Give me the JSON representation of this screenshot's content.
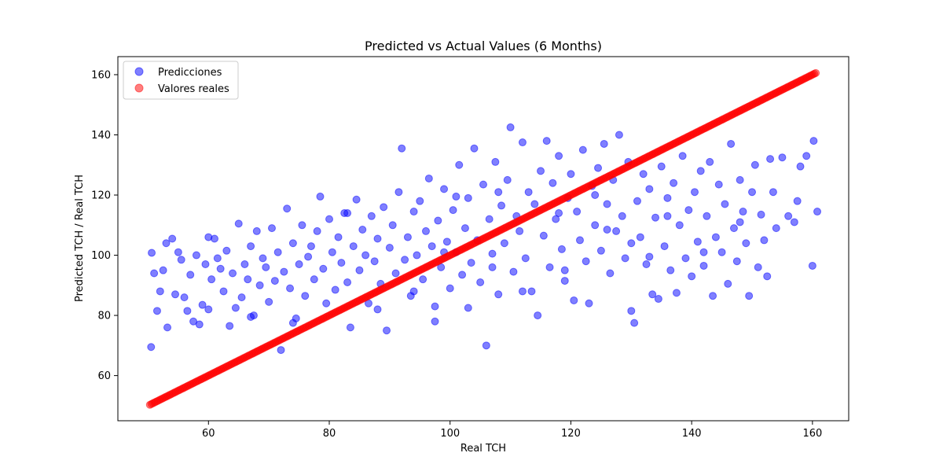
{
  "chart_data": {
    "type": "scatter",
    "title": "Predicted vs Actual Values (6 Months)",
    "xlabel": "Real TCH",
    "ylabel": "Predicted TCH / Real TCH",
    "xlim": [
      45,
      166
    ],
    "ylim": [
      45,
      166
    ],
    "xticks": [
      60,
      80,
      100,
      120,
      140,
      160
    ],
    "yticks": [
      60,
      80,
      100,
      120,
      140,
      160
    ],
    "grid": false,
    "legend_placement": "top-left",
    "series": [
      {
        "name": "Predicciones",
        "color": "#0000ff",
        "alpha": 0.5,
        "points": [
          [
            50.5,
            69.5
          ],
          [
            50.6,
            100.8
          ],
          [
            51,
            94
          ],
          [
            51.5,
            81.5
          ],
          [
            52,
            88
          ],
          [
            52.5,
            95
          ],
          [
            53,
            104
          ],
          [
            53.2,
            76
          ],
          [
            54,
            105.5
          ],
          [
            54.5,
            87
          ],
          [
            55,
            101
          ],
          [
            55.5,
            98.5
          ],
          [
            56,
            86
          ],
          [
            56.5,
            81.5
          ],
          [
            57,
            93.5
          ],
          [
            57.5,
            78
          ],
          [
            58,
            100
          ],
          [
            58.5,
            77
          ],
          [
            59,
            83.5
          ],
          [
            59.5,
            97
          ],
          [
            60,
            82
          ],
          [
            60.5,
            92
          ],
          [
            61,
            105.5
          ],
          [
            61.5,
            99
          ],
          [
            62,
            95.5
          ],
          [
            62.5,
            88
          ],
          [
            63,
            101.5
          ],
          [
            63.5,
            76.5
          ],
          [
            64,
            94
          ],
          [
            64.5,
            82.5
          ],
          [
            65,
            110.5
          ],
          [
            65.5,
            86
          ],
          [
            66,
            97
          ],
          [
            66.5,
            92
          ],
          [
            67,
            103
          ],
          [
            67.5,
            80
          ],
          [
            68,
            108
          ],
          [
            68.5,
            90
          ],
          [
            69,
            99
          ],
          [
            69.5,
            96
          ],
          [
            70,
            84.5
          ],
          [
            70.5,
            109
          ],
          [
            71,
            91.5
          ],
          [
            71.5,
            101
          ],
          [
            72,
            68.5
          ],
          [
            72.5,
            94.5
          ],
          [
            73,
            115.5
          ],
          [
            73.5,
            89
          ],
          [
            74,
            104
          ],
          [
            74.5,
            79
          ],
          [
            75,
            97
          ],
          [
            75.5,
            110
          ],
          [
            76,
            86.5
          ],
          [
            76.5,
            99.5
          ],
          [
            77,
            103
          ],
          [
            77.5,
            92
          ],
          [
            78,
            108
          ],
          [
            78.5,
            119.5
          ],
          [
            79,
            95.5
          ],
          [
            79.5,
            84
          ],
          [
            80,
            112
          ],
          [
            80.5,
            101
          ],
          [
            81,
            88.5
          ],
          [
            81.5,
            106
          ],
          [
            82,
            97.5
          ],
          [
            82.5,
            114
          ],
          [
            83,
            91
          ],
          [
            83.5,
            76
          ],
          [
            84,
            103
          ],
          [
            84.5,
            118.5
          ],
          [
            85,
            95
          ],
          [
            85.5,
            108.5
          ],
          [
            86,
            100
          ],
          [
            86.5,
            84
          ],
          [
            87,
            113
          ],
          [
            87.5,
            98
          ],
          [
            88,
            105.5
          ],
          [
            88.5,
            90.5
          ],
          [
            89,
            116
          ],
          [
            89.5,
            75
          ],
          [
            90,
            102.5
          ],
          [
            90.5,
            110
          ],
          [
            91,
            94
          ],
          [
            91.5,
            121
          ],
          [
            92,
            135.5
          ],
          [
            92.5,
            98.5
          ],
          [
            93,
            106
          ],
          [
            93.5,
            86.5
          ],
          [
            94,
            114.5
          ],
          [
            94.5,
            100
          ],
          [
            95,
            118
          ],
          [
            95.5,
            92
          ],
          [
            96,
            108
          ],
          [
            96.5,
            125.5
          ],
          [
            97,
            103
          ],
          [
            97.5,
            78
          ],
          [
            98,
            111.5
          ],
          [
            98.5,
            96
          ],
          [
            99,
            122
          ],
          [
            99.5,
            104.5
          ],
          [
            100,
            89
          ],
          [
            100.5,
            115
          ],
          [
            101,
            101
          ],
          [
            101.5,
            130
          ],
          [
            102,
            93.5
          ],
          [
            102.5,
            109
          ],
          [
            103,
            119
          ],
          [
            103.5,
            97.5
          ],
          [
            104,
            135.5
          ],
          [
            104.5,
            105
          ],
          [
            105,
            91
          ],
          [
            105.5,
            123.5
          ],
          [
            106,
            70
          ],
          [
            106.5,
            112
          ],
          [
            107,
            100.5
          ],
          [
            107.5,
            131
          ],
          [
            108,
            87
          ],
          [
            108.5,
            116.5
          ],
          [
            109,
            104
          ],
          [
            109.5,
            125
          ],
          [
            110,
            142.5
          ],
          [
            110.5,
            94.5
          ],
          [
            111,
            113
          ],
          [
            111.5,
            108
          ],
          [
            112,
            137.5
          ],
          [
            112.5,
            99
          ],
          [
            113,
            121
          ],
          [
            113.5,
            88
          ],
          [
            114,
            117
          ],
          [
            114.5,
            80
          ],
          [
            115,
            128
          ],
          [
            115.5,
            106.5
          ],
          [
            116,
            138
          ],
          [
            116.5,
            96
          ],
          [
            117,
            124
          ],
          [
            117.5,
            112
          ],
          [
            118,
            133
          ],
          [
            118.5,
            102
          ],
          [
            119,
            91.5
          ],
          [
            119.5,
            119
          ],
          [
            120,
            127
          ],
          [
            120.5,
            85
          ],
          [
            121,
            114.5
          ],
          [
            121.5,
            105
          ],
          [
            122,
            135
          ],
          [
            122.5,
            98
          ],
          [
            123,
            84
          ],
          [
            123.5,
            123
          ],
          [
            124,
            110
          ],
          [
            124.5,
            129
          ],
          [
            125,
            101.5
          ],
          [
            125.5,
            137
          ],
          [
            126,
            117
          ],
          [
            126.5,
            94
          ],
          [
            127,
            125
          ],
          [
            127.5,
            108
          ],
          [
            128,
            140
          ],
          [
            128.5,
            113
          ],
          [
            129,
            99
          ],
          [
            129.5,
            131
          ],
          [
            130,
            81.5
          ],
          [
            130.5,
            77.5
          ],
          [
            131,
            118
          ],
          [
            131.5,
            106
          ],
          [
            132,
            127
          ],
          [
            132.5,
            97
          ],
          [
            133,
            122
          ],
          [
            133.5,
            87
          ],
          [
            134,
            112.5
          ],
          [
            134.5,
            85.5
          ],
          [
            135,
            129.5
          ],
          [
            135.5,
            103
          ],
          [
            136,
            119
          ],
          [
            136.5,
            95
          ],
          [
            137,
            124
          ],
          [
            137.5,
            87.5
          ],
          [
            138,
            110
          ],
          [
            138.5,
            133
          ],
          [
            139,
            99
          ],
          [
            139.5,
            115
          ],
          [
            140,
            93
          ],
          [
            140.5,
            121
          ],
          [
            141,
            104.5
          ],
          [
            141.5,
            128
          ],
          [
            142,
            96.5
          ],
          [
            142.5,
            113
          ],
          [
            143,
            131
          ],
          [
            143.5,
            86.5
          ],
          [
            144,
            106
          ],
          [
            144.5,
            123.5
          ],
          [
            145,
            101
          ],
          [
            145.5,
            117
          ],
          [
            146,
            90.5
          ],
          [
            146.5,
            137
          ],
          [
            147,
            109
          ],
          [
            147.5,
            98
          ],
          [
            148,
            125
          ],
          [
            148.5,
            114.5
          ],
          [
            149,
            104
          ],
          [
            149.5,
            86.5
          ],
          [
            150,
            121
          ],
          [
            150.5,
            130
          ],
          [
            151,
            96
          ],
          [
            151.5,
            113.5
          ],
          [
            152,
            105
          ],
          [
            152.5,
            93
          ],
          [
            153,
            132
          ],
          [
            153.5,
            121
          ],
          [
            154,
            109
          ],
          [
            155,
            132.5
          ],
          [
            156,
            113
          ],
          [
            157,
            111
          ],
          [
            157.5,
            118
          ],
          [
            158,
            129.5
          ],
          [
            159,
            133
          ],
          [
            160,
            96.5
          ],
          [
            160.2,
            138
          ],
          [
            160.8,
            114.5
          ],
          [
            97.5,
            83
          ],
          [
            103,
            82.5
          ],
          [
            60,
            106
          ],
          [
            67,
            79.5
          ],
          [
            74,
            77.5
          ],
          [
            83,
            114
          ],
          [
            88,
            82
          ],
          [
            94,
            88
          ],
          [
            101,
            119.5
          ],
          [
            107,
            96
          ],
          [
            112,
            88
          ],
          [
            118,
            114
          ],
          [
            124,
            120
          ],
          [
            130,
            104
          ],
          [
            136,
            113
          ],
          [
            142,
            101
          ],
          [
            148,
            111
          ],
          [
            119,
            95
          ],
          [
            126,
            108.5
          ],
          [
            133,
            99.5
          ],
          [
            99,
            101
          ],
          [
            108,
            121
          ]
        ]
      },
      {
        "name": "Valores reales",
        "color": "#ff0000",
        "alpha": 0.5,
        "from": 50.3,
        "to": 160.6
      }
    ]
  }
}
